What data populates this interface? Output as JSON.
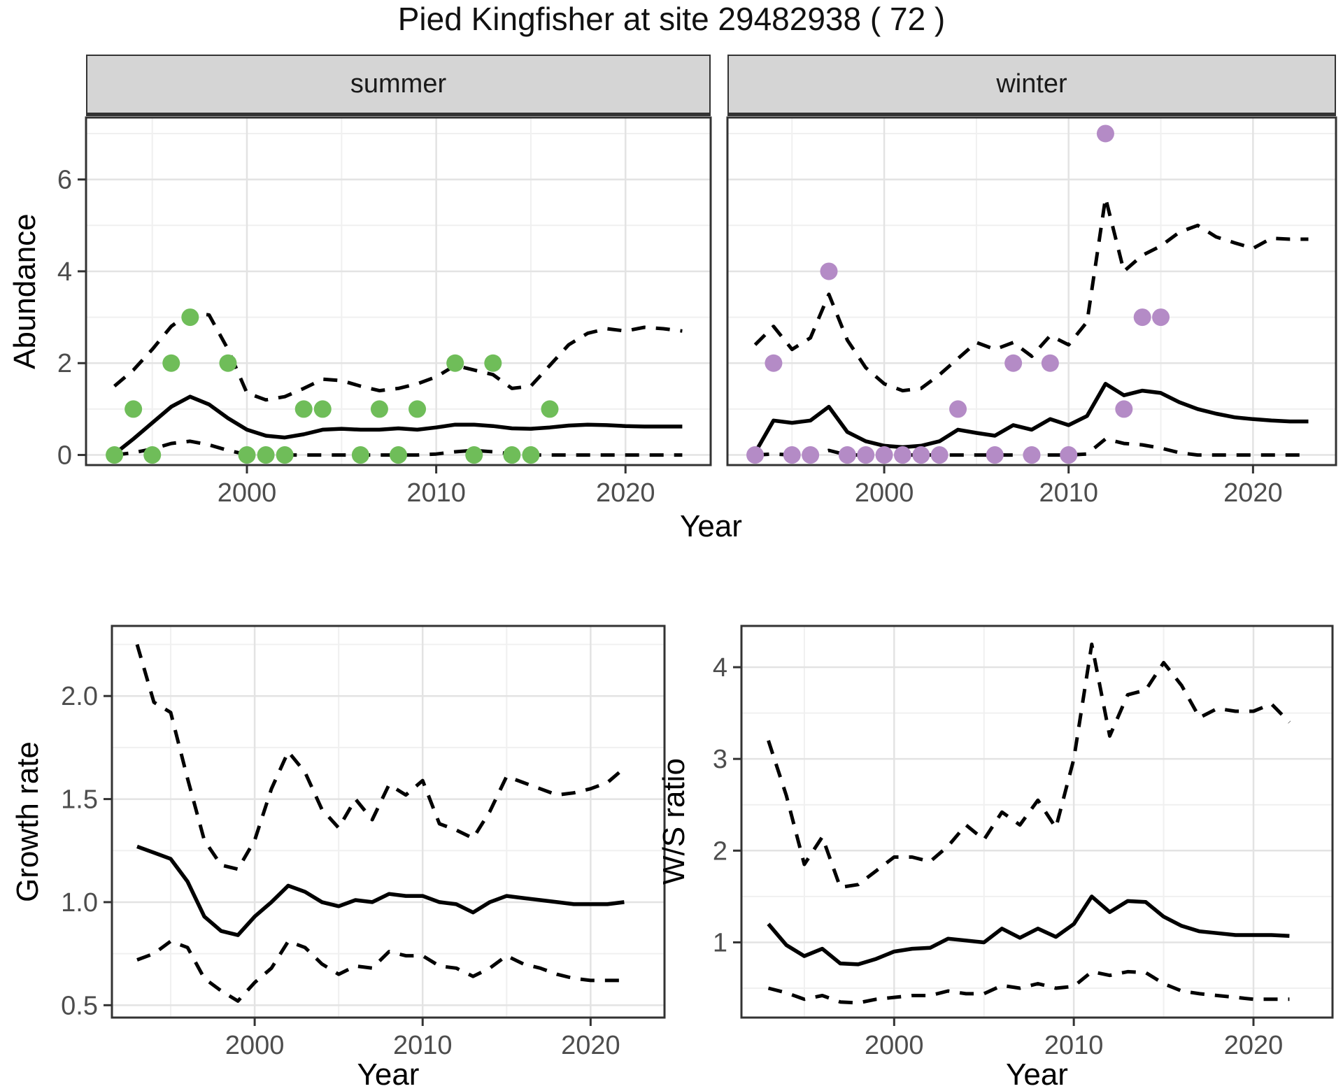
{
  "title": "Pied Kingfisher at site 29482938 ( 72 )",
  "facets": {
    "summer_label": "summer",
    "winter_label": "winter"
  },
  "axis_titles": {
    "abundance": "Abundance",
    "year_top": "Year",
    "growth": "Growth rate",
    "year_growth": "Year",
    "ws": "W/S ratio",
    "year_ws": "Year"
  },
  "colors": {
    "summer_point": "#6FBD59",
    "winter_point": "#B48BC6",
    "strip_bg": "#D5D5D5",
    "panel_border": "#333333",
    "grid_major": "#E3E3E3",
    "grid_minor": "#F0F0F0",
    "line": "#000000",
    "tick_label": "#4D4D4D",
    "tick_mark": "#333333"
  },
  "chart_data": [
    {
      "id": "summer",
      "type": "line",
      "title": "summer",
      "xlabel": "Year",
      "ylabel": "Abundance",
      "xlim": [
        1991.5,
        2024.5
      ],
      "ylim": [
        -0.22,
        7.35
      ],
      "x_ticks": [
        {
          "v": 2000,
          "label": "2000"
        },
        {
          "v": 2010,
          "label": "2010"
        },
        {
          "v": 2020,
          "label": "2020"
        }
      ],
      "x_minor": [
        1995,
        2005,
        2015
      ],
      "y_ticks": [
        {
          "v": 0,
          "label": "0"
        },
        {
          "v": 2,
          "label": "2"
        },
        {
          "v": 4,
          "label": "4"
        },
        {
          "v": 6,
          "label": "6"
        }
      ],
      "y_minor": [
        1,
        3,
        5,
        7
      ],
      "start_year": 1993,
      "median": [
        0.02,
        0.35,
        0.7,
        1.05,
        1.27,
        1.1,
        0.8,
        0.55,
        0.42,
        0.38,
        0.45,
        0.55,
        0.57,
        0.55,
        0.55,
        0.58,
        0.55,
        0.6,
        0.66,
        0.66,
        0.63,
        0.58,
        0.57,
        0.6,
        0.64,
        0.66,
        0.65,
        0.63,
        0.62,
        0.62,
        0.62
      ],
      "upper": [
        1.5,
        1.85,
        2.3,
        2.8,
        3.1,
        3.05,
        2.3,
        1.35,
        1.2,
        1.27,
        1.45,
        1.65,
        1.62,
        1.5,
        1.4,
        1.45,
        1.55,
        1.7,
        1.95,
        1.85,
        1.75,
        1.45,
        1.5,
        1.95,
        2.4,
        2.65,
        2.75,
        2.7,
        2.78,
        2.75,
        2.7
      ],
      "lower": [
        0.0,
        0.05,
        0.13,
        0.25,
        0.3,
        0.22,
        0.1,
        0.01,
        0.0,
        0.0,
        0.0,
        0.0,
        0.0,
        0.0,
        0.0,
        0.0,
        0.0,
        0.02,
        0.07,
        0.1,
        0.07,
        0.02,
        0.0,
        0.0,
        0.0,
        0.0,
        0.0,
        0.0,
        0.0,
        0.0,
        0.0
      ],
      "points": [
        [
          1993,
          0
        ],
        [
          1994,
          1
        ],
        [
          1995,
          0
        ],
        [
          1996,
          2
        ],
        [
          1997,
          3
        ],
        [
          1999,
          2
        ],
        [
          2000,
          0
        ],
        [
          2001,
          0
        ],
        [
          2002,
          0
        ],
        [
          2003,
          1
        ],
        [
          2004,
          1
        ],
        [
          2006,
          0
        ],
        [
          2007,
          1
        ],
        [
          2008,
          0
        ],
        [
          2009,
          1
        ],
        [
          2011,
          2
        ],
        [
          2012,
          0
        ],
        [
          2013,
          2
        ],
        [
          2014,
          0
        ],
        [
          2015,
          0
        ],
        [
          2016,
          1
        ]
      ],
      "point_color": "#6FBD59"
    },
    {
      "id": "winter",
      "type": "line",
      "title": "winter",
      "xlabel": "Year",
      "ylabel": "Abundance",
      "xlim": [
        1991.5,
        2024.5
      ],
      "ylim": [
        -0.22,
        7.35
      ],
      "x_ticks": [
        {
          "v": 2000,
          "label": "2000"
        },
        {
          "v": 2010,
          "label": "2010"
        },
        {
          "v": 2020,
          "label": "2020"
        }
      ],
      "x_minor": [
        1995,
        2005,
        2015
      ],
      "y_ticks": [
        {
          "v": 0,
          "label": "0"
        },
        {
          "v": 2,
          "label": "2"
        },
        {
          "v": 4,
          "label": "4"
        },
        {
          "v": 6,
          "label": "6"
        }
      ],
      "y_minor": [
        1,
        3,
        5,
        7
      ],
      "start_year": 1993,
      "median": [
        0.05,
        0.75,
        0.7,
        0.75,
        1.05,
        0.5,
        0.3,
        0.2,
        0.17,
        0.2,
        0.3,
        0.55,
        0.48,
        0.42,
        0.65,
        0.55,
        0.78,
        0.65,
        0.85,
        1.55,
        1.3,
        1.4,
        1.35,
        1.15,
        1.0,
        0.9,
        0.82,
        0.78,
        0.75,
        0.73,
        0.73
      ],
      "upper": [
        2.4,
        2.8,
        2.3,
        2.55,
        3.5,
        2.5,
        1.9,
        1.55,
        1.4,
        1.45,
        1.75,
        2.1,
        2.45,
        2.3,
        2.45,
        2.15,
        2.6,
        2.4,
        2.9,
        5.6,
        4.0,
        4.35,
        4.55,
        4.85,
        5.0,
        4.75,
        4.62,
        4.5,
        4.72,
        4.7,
        4.7
      ],
      "lower": [
        0.0,
        0.02,
        0.0,
        0.0,
        0.1,
        0.0,
        0.0,
        0.0,
        0.0,
        0.0,
        0.0,
        0.0,
        0.0,
        0.0,
        0.0,
        0.0,
        0.0,
        0.0,
        0.02,
        0.35,
        0.25,
        0.22,
        0.15,
        0.05,
        0.0,
        0.0,
        0.0,
        0.0,
        0.0,
        0.0,
        0.0
      ],
      "points": [
        [
          1993,
          0
        ],
        [
          1994,
          2
        ],
        [
          1995,
          0
        ],
        [
          1996,
          0
        ],
        [
          1997,
          4
        ],
        [
          1998,
          0
        ],
        [
          1999,
          0
        ],
        [
          2000,
          0
        ],
        [
          2001,
          0
        ],
        [
          2002,
          0
        ],
        [
          2003,
          0
        ],
        [
          2004,
          1
        ],
        [
          2006,
          0
        ],
        [
          2007,
          2
        ],
        [
          2008,
          0
        ],
        [
          2009,
          2
        ],
        [
          2010,
          0
        ],
        [
          2012,
          7
        ],
        [
          2013,
          1
        ],
        [
          2014,
          3
        ],
        [
          2015,
          3
        ]
      ],
      "point_color": "#B48BC6"
    },
    {
      "id": "growth",
      "type": "line",
      "title": "Growth rate",
      "xlabel": "Year",
      "ylabel": "Growth rate",
      "xlim": [
        1991.5,
        2024.4
      ],
      "ylim": [
        0.44,
        2.34
      ],
      "x_ticks": [
        {
          "v": 2000,
          "label": "2000"
        },
        {
          "v": 2010,
          "label": "2010"
        },
        {
          "v": 2020,
          "label": "2020"
        }
      ],
      "x_minor": [
        1995,
        2005,
        2015
      ],
      "y_ticks": [
        {
          "v": 0.5,
          "label": "0.5"
        },
        {
          "v": 1.0,
          "label": "1.0"
        },
        {
          "v": 1.5,
          "label": "1.5"
        },
        {
          "v": 2.0,
          "label": "2.0"
        }
      ],
      "y_minor": [
        0.75,
        1.25,
        1.75,
        2.25
      ],
      "start_year": 1993,
      "median": [
        1.27,
        1.24,
        1.21,
        1.1,
        0.93,
        0.86,
        0.84,
        0.93,
        1.0,
        1.08,
        1.05,
        1.0,
        0.98,
        1.01,
        1.0,
        1.04,
        1.03,
        1.03,
        1.0,
        0.99,
        0.95,
        1.0,
        1.03,
        1.02,
        1.01,
        1.0,
        0.99,
        0.99,
        0.99,
        1.0
      ],
      "upper": [
        2.25,
        1.97,
        1.92,
        1.6,
        1.3,
        1.18,
        1.16,
        1.3,
        1.55,
        1.73,
        1.63,
        1.45,
        1.36,
        1.5,
        1.4,
        1.57,
        1.52,
        1.59,
        1.38,
        1.35,
        1.31,
        1.44,
        1.61,
        1.58,
        1.55,
        1.52,
        1.53,
        1.55,
        1.58,
        1.65
      ],
      "lower": [
        0.72,
        0.75,
        0.81,
        0.78,
        0.63,
        0.57,
        0.52,
        0.61,
        0.68,
        0.81,
        0.78,
        0.7,
        0.65,
        0.69,
        0.68,
        0.76,
        0.74,
        0.74,
        0.69,
        0.68,
        0.64,
        0.68,
        0.74,
        0.7,
        0.68,
        0.65,
        0.63,
        0.62,
        0.62,
        0.62
      ],
      "points": [],
      "point_color": "#000000"
    },
    {
      "id": "ws",
      "type": "line",
      "title": "W/S ratio",
      "xlabel": "Year",
      "ylabel": "W/S ratio",
      "xlim": [
        1991.5,
        2024.4
      ],
      "ylim": [
        0.18,
        4.45
      ],
      "x_ticks": [
        {
          "v": 2000,
          "label": "2000"
        },
        {
          "v": 2010,
          "label": "2010"
        },
        {
          "v": 2020,
          "label": "2020"
        }
      ],
      "x_minor": [
        1995,
        2005,
        2015
      ],
      "y_ticks": [
        {
          "v": 1,
          "label": "1"
        },
        {
          "v": 2,
          "label": "2"
        },
        {
          "v": 3,
          "label": "3"
        },
        {
          "v": 4,
          "label": "4"
        }
      ],
      "y_minor": [
        0.5,
        1.5,
        2.5,
        3.5
      ],
      "start_year": 1993,
      "median": [
        1.2,
        0.97,
        0.85,
        0.93,
        0.77,
        0.76,
        0.82,
        0.9,
        0.93,
        0.94,
        1.04,
        1.02,
        1.0,
        1.15,
        1.05,
        1.15,
        1.06,
        1.2,
        1.5,
        1.33,
        1.45,
        1.44,
        1.28,
        1.18,
        1.12,
        1.1,
        1.08,
        1.08,
        1.08,
        1.07
      ],
      "upper": [
        3.2,
        2.6,
        1.85,
        2.15,
        1.6,
        1.63,
        1.78,
        1.93,
        1.93,
        1.88,
        2.05,
        2.28,
        2.12,
        2.42,
        2.28,
        2.55,
        2.25,
        3.0,
        4.25,
        3.25,
        3.7,
        3.75,
        4.05,
        3.8,
        3.45,
        3.55,
        3.52,
        3.52,
        3.6,
        3.4
      ],
      "lower": [
        0.5,
        0.45,
        0.38,
        0.42,
        0.35,
        0.34,
        0.38,
        0.4,
        0.42,
        0.42,
        0.47,
        0.44,
        0.44,
        0.53,
        0.5,
        0.55,
        0.5,
        0.52,
        0.68,
        0.64,
        0.68,
        0.67,
        0.55,
        0.47,
        0.44,
        0.42,
        0.4,
        0.38,
        0.38,
        0.38
      ],
      "points": [],
      "point_color": "#000000"
    }
  ]
}
